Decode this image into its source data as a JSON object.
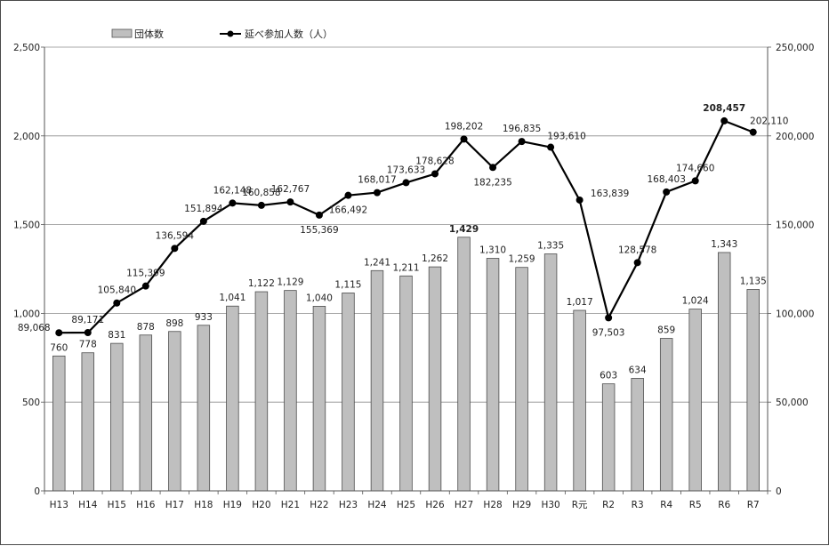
{
  "chart_data": {
    "type": "bar+line",
    "title": "",
    "xlabel": "",
    "ylabel": "",
    "y2label": "",
    "categories": [
      "H13",
      "H14",
      "H15",
      "H16",
      "H17",
      "H18",
      "H19",
      "H20",
      "H21",
      "H22",
      "H23",
      "H24",
      "H25",
      "H26",
      "H27",
      "H28",
      "H29",
      "H30",
      "R元",
      "R2",
      "R3",
      "R4",
      "R5",
      "R6",
      "R7"
    ],
    "series": [
      {
        "name": "団体数",
        "type": "bar",
        "axis": "left",
        "color": "#bfbfbf",
        "values": [
          760,
          778,
          831,
          878,
          898,
          933,
          1041,
          1122,
          1129,
          1040,
          1115,
          1241,
          1211,
          1262,
          1429,
          1310,
          1259,
          1335,
          1017,
          603,
          634,
          859,
          1024,
          1343,
          1135
        ],
        "labels": [
          "760",
          "778",
          "831",
          "878",
          "898",
          "933",
          "1,041",
          "1,122",
          "1,129",
          "1,040",
          "1,115",
          "1,241",
          "1,211",
          "1,262",
          "1,429",
          "1,310",
          "1,259",
          "1,335",
          "1,017",
          "603",
          "634",
          "859",
          "1,024",
          "1,343",
          "1,135"
        ],
        "bold_indices": [
          14
        ]
      },
      {
        "name": "延べ参加人数（人）",
        "type": "line",
        "axis": "right",
        "color": "#000000",
        "values": [
          89068,
          89171,
          105840,
          115399,
          136594,
          151894,
          162148,
          160858,
          162767,
          155369,
          166492,
          168017,
          173633,
          178628,
          198202,
          182235,
          196835,
          193610,
          163839,
          97503,
          128578,
          168403,
          174660,
          208457,
          202110
        ],
        "labels": [
          "89,068",
          "89,171",
          "105,840",
          "115,399",
          "136,594",
          "151,894",
          "162,148",
          "160,858",
          "162,767",
          "155,369",
          "166,492",
          "168,017",
          "173,633",
          "178,628",
          "198,202",
          "182,235",
          "196,835",
          "193,610",
          "163,839",
          "97,503",
          "128,578",
          "168,403",
          "174,660",
          "208,457",
          "202,110"
        ],
        "bold_indices": [
          23
        ]
      }
    ],
    "ylim": [
      0,
      2500
    ],
    "y2lim": [
      0,
      250000
    ],
    "yticks": [
      "0",
      "500",
      "1,000",
      "1,500",
      "2,000",
      "2,500"
    ],
    "y2ticks": [
      "0",
      "50,000",
      "100,000",
      "150,000",
      "200,000",
      "250,000"
    ],
    "grid": true,
    "legend": "top-left"
  }
}
